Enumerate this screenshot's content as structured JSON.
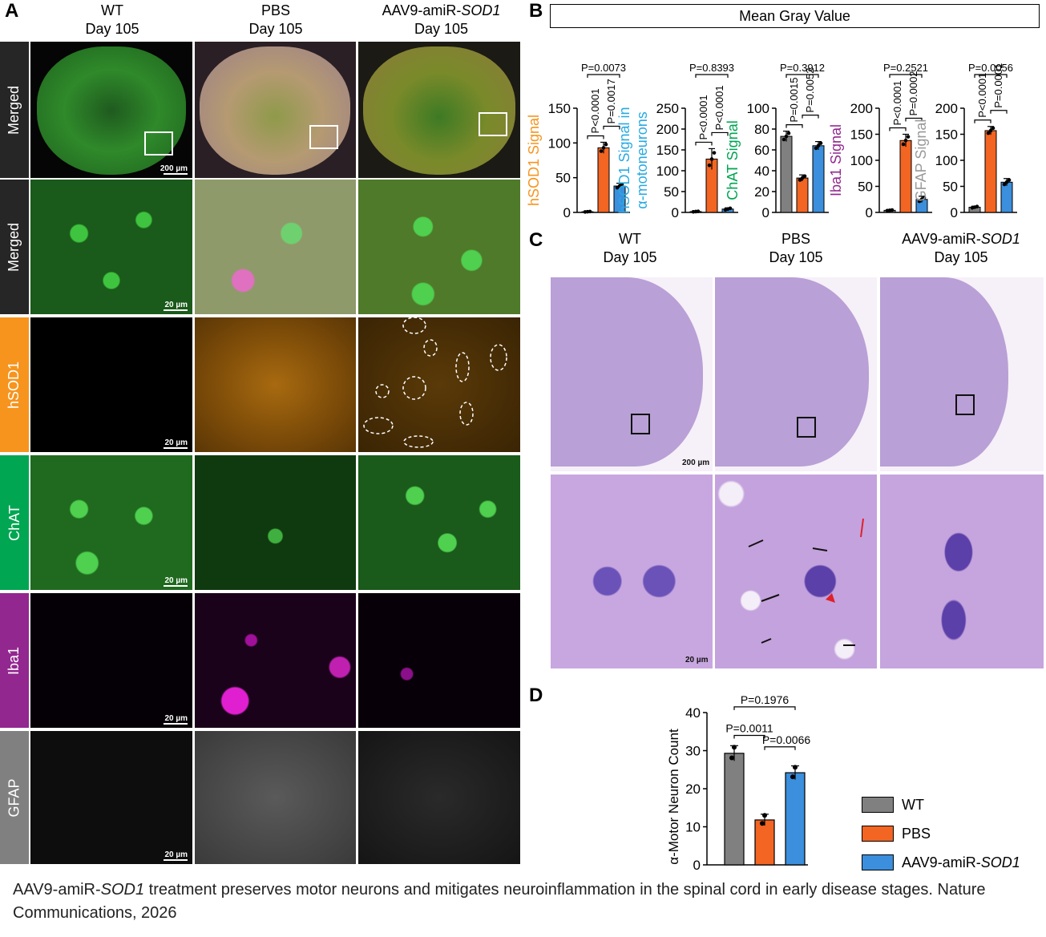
{
  "panels": {
    "A": "A",
    "B": "B",
    "C": "C",
    "D": "D"
  },
  "panelA": {
    "columns": [
      {
        "line1": "WT",
        "line2": "Day 105"
      },
      {
        "line1": "PBS",
        "line2": "Day 105"
      },
      {
        "line1": "AAV9-amiR-",
        "italic": "SOD1",
        "line2": "Day 105"
      }
    ],
    "rows": [
      {
        "label": "Merged",
        "color": "#262626",
        "scale": "200 µm"
      },
      {
        "label": "Merged",
        "color": "#262626",
        "scale": "20 µm"
      },
      {
        "label": "hSOD1",
        "color": "#f7941d",
        "scale": "20 µm"
      },
      {
        "label": "ChAT",
        "color": "#00a651",
        "scale": "20 µm"
      },
      {
        "label": "Iba1",
        "color": "#92278f",
        "scale": "20 µm"
      },
      {
        "label": "GFAP",
        "color": "#808080",
        "scale": "20 µm"
      }
    ]
  },
  "panelB": {
    "title": "Mean Gray Value",
    "colors": {
      "wt": "#808080",
      "pbs": "#f26522",
      "aav": "#3b8fdc"
    },
    "charts": [
      {
        "ylabel": "hSOD1 Signal",
        "ylabel_color": "#f7941d",
        "ymax": 150,
        "ticks": [
          0,
          50,
          100,
          150
        ],
        "values": [
          1,
          93,
          38
        ],
        "errors": [
          0.5,
          8,
          4
        ],
        "pvals": {
          "a": "P<0.0001",
          "b": "P=0.0017",
          "c": "P=0.0073"
        }
      },
      {
        "ylabel": "hSOD1 Signal in",
        "ylabel2": "α-motoneurons",
        "ylabel_color": "#27aae1",
        "ymax": 250,
        "ticks": [
          0,
          50,
          100,
          150,
          200,
          250
        ],
        "values": [
          2,
          128,
          8
        ],
        "errors": [
          1,
          25,
          3
        ],
        "pvals": {
          "a": "P<0.0001",
          "b": "P<0.0001",
          "c": "P=0.8393"
        }
      },
      {
        "ylabel": "ChAT Signal",
        "ylabel_color": "#00a651",
        "ymax": 100,
        "ticks": [
          0,
          20,
          40,
          60,
          80,
          100
        ],
        "values": [
          73,
          33,
          64
        ],
        "errors": [
          5,
          3,
          4
        ],
        "pvals": {
          "a": "P=0.0015",
          "b": "P=0.0052",
          "c": "P=0.3912"
        }
      },
      {
        "ylabel": "Iba1 Signal",
        "ylabel_color": "#92278f",
        "ymax": 200,
        "ticks": [
          0,
          50,
          100,
          150,
          200
        ],
        "values": [
          4,
          138,
          25
        ],
        "errors": [
          1,
          12,
          6
        ],
        "pvals": {
          "a": "P<0.0001",
          "b": "P=0.0002",
          "c": "P=0.2521"
        }
      },
      {
        "ylabel": "GFAP Signal",
        "ylabel_color": "#999999",
        "ymax": 200,
        "ticks": [
          0,
          50,
          100,
          150,
          200
        ],
        "values": [
          10,
          157,
          58
        ],
        "errors": [
          2,
          8,
          7
        ],
        "pvals": {
          "a": "P<0.0001",
          "b": "P=0.0001",
          "c": "P=0.0056"
        }
      }
    ]
  },
  "panelC": {
    "columns": [
      {
        "line1": "WT",
        "line2": "Day 105"
      },
      {
        "line1": "PBS",
        "line2": "Day 105"
      },
      {
        "line1": "AAV9-amiR-",
        "italic": "SOD1",
        "line2": "Day 105"
      }
    ],
    "scale_top": "200 µm",
    "scale_bottom": "20 µm"
  },
  "panelD": {
    "ylabel": "α-Motor Neuron Count",
    "ticks": [
      0,
      10,
      20,
      30,
      40
    ],
    "values": [
      29.3,
      11.8,
      24.2
    ],
    "errors": [
      2,
      1.5,
      1.8
    ],
    "pvals": {
      "wt_pbs": "P=0.0011",
      "pbs_aav": "P=0.0066",
      "wt_aav": "P=0.1976"
    },
    "legend": [
      {
        "label": "WT",
        "color": "#808080"
      },
      {
        "label": "PBS",
        "color": "#f26522"
      },
      {
        "label": "AAV9-amiR-",
        "italic": "SOD1",
        "color": "#3b8fdc"
      }
    ]
  },
  "caption": {
    "pre": "AAV9-amiR-",
    "italic": "SOD1",
    "post": " treatment preserves motor neurons and mitigates neuroinflammation in the spinal cord in early disease stages. Nature Communications, 2026"
  }
}
